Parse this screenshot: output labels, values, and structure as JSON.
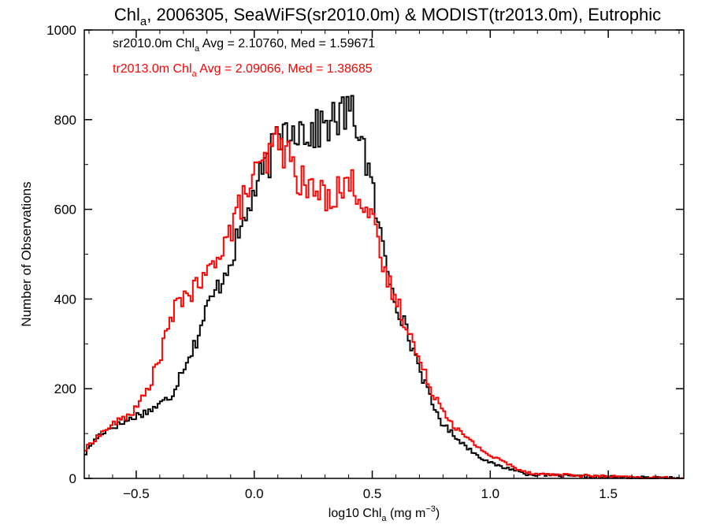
{
  "chart_data": {
    "type": "histogram",
    "title": "Chl_a, 2006305, SeaWiFS(sr2010.0m) & MODIST(tr2013.0m), Eutrophic",
    "title_parts": {
      "pre": "Chl",
      "sub": "a",
      "post": ", 2006305, SeaWiFS(sr2010.0m) & MODIST(tr2013.0m), Eutrophic"
    },
    "xlabel": "log10 Chl_a (mg m^-3)",
    "xlabel_parts": {
      "pre": "log10 Chl",
      "sub": "a",
      "mid": " (mg m",
      "sup": "−3",
      "post": ")"
    },
    "ylabel": "Number of Observations",
    "xlim": [
      -0.72,
      1.82
    ],
    "ylim": [
      0,
      1000
    ],
    "xticks": [
      -0.5,
      0.0,
      0.5,
      1.0,
      1.5
    ],
    "xtick_labels": [
      "−0.5",
      "0.0",
      "0.5",
      "1.0",
      "1.5"
    ],
    "yticks": [
      0,
      200,
      400,
      600,
      800,
      1000
    ],
    "ytick_labels": [
      "0",
      "200",
      "400",
      "600",
      "800",
      "1000"
    ],
    "grid": false,
    "bin_width": 0.01,
    "series": [
      {
        "name": "sr2010.0m",
        "color": "#000000",
        "annotation": {
          "pre": "sr2010.0m Chl",
          "sub": "a",
          "post": " Avg = 2.10760, Med = 1.59671"
        },
        "points": [
          [
            -0.72,
            50
          ],
          [
            -0.7,
            70
          ],
          [
            -0.65,
            100
          ],
          [
            -0.6,
            115
          ],
          [
            -0.55,
            125
          ],
          [
            -0.5,
            140
          ],
          [
            -0.45,
            150
          ],
          [
            -0.4,
            165
          ],
          [
            -0.35,
            185
          ],
          [
            -0.3,
            250
          ],
          [
            -0.25,
            300
          ],
          [
            -0.2,
            380
          ],
          [
            -0.15,
            430
          ],
          [
            -0.1,
            490
          ],
          [
            -0.05,
            560
          ],
          [
            0.0,
            640
          ],
          [
            0.05,
            690
          ],
          [
            0.1,
            760
          ],
          [
            0.15,
            790
          ],
          [
            0.2,
            780
          ],
          [
            0.25,
            770
          ],
          [
            0.3,
            790
          ],
          [
            0.35,
            800
          ],
          [
            0.4,
            820
          ],
          [
            0.45,
            780
          ],
          [
            0.5,
            640
          ],
          [
            0.55,
            500
          ],
          [
            0.6,
            400
          ],
          [
            0.65,
            320
          ],
          [
            0.7,
            250
          ],
          [
            0.75,
            170
          ],
          [
            0.8,
            120
          ],
          [
            0.85,
            95
          ],
          [
            0.9,
            70
          ],
          [
            0.95,
            50
          ],
          [
            1.0,
            35
          ],
          [
            1.05,
            25
          ],
          [
            1.1,
            20
          ],
          [
            1.15,
            10
          ],
          [
            1.2,
            8
          ],
          [
            1.3,
            6
          ],
          [
            1.4,
            4
          ],
          [
            1.5,
            3
          ],
          [
            1.6,
            2
          ],
          [
            1.7,
            1
          ],
          [
            1.82,
            0
          ]
        ]
      },
      {
        "name": "tr2013.0m",
        "color": "#ff0000",
        "annotation": {
          "pre": "tr2013.0m Chl",
          "sub": "a",
          "post": " Avg = 2.09066, Med = 1.38685"
        },
        "points": [
          [
            -0.72,
            60
          ],
          [
            -0.7,
            75
          ],
          [
            -0.65,
            100
          ],
          [
            -0.6,
            120
          ],
          [
            -0.55,
            135
          ],
          [
            -0.5,
            155
          ],
          [
            -0.45,
            200
          ],
          [
            -0.4,
            270
          ],
          [
            -0.35,
            360
          ],
          [
            -0.3,
            410
          ],
          [
            -0.25,
            420
          ],
          [
            -0.2,
            450
          ],
          [
            -0.15,
            510
          ],
          [
            -0.1,
            550
          ],
          [
            -0.05,
            620
          ],
          [
            0.0,
            670
          ],
          [
            0.05,
            700
          ],
          [
            0.1,
            760
          ],
          [
            0.15,
            710
          ],
          [
            0.2,
            660
          ],
          [
            0.25,
            640
          ],
          [
            0.3,
            630
          ],
          [
            0.35,
            640
          ],
          [
            0.4,
            660
          ],
          [
            0.45,
            640
          ],
          [
            0.5,
            570
          ],
          [
            0.55,
            460
          ],
          [
            0.6,
            400
          ],
          [
            0.65,
            340
          ],
          [
            0.7,
            260
          ],
          [
            0.75,
            200
          ],
          [
            0.8,
            155
          ],
          [
            0.85,
            115
          ],
          [
            0.9,
            90
          ],
          [
            0.95,
            70
          ],
          [
            1.0,
            50
          ],
          [
            1.05,
            40
          ],
          [
            1.1,
            25
          ],
          [
            1.15,
            15
          ],
          [
            1.2,
            10
          ],
          [
            1.3,
            8
          ],
          [
            1.4,
            6
          ],
          [
            1.5,
            4
          ],
          [
            1.6,
            2
          ],
          [
            1.7,
            1
          ],
          [
            1.82,
            0
          ]
        ]
      }
    ]
  }
}
